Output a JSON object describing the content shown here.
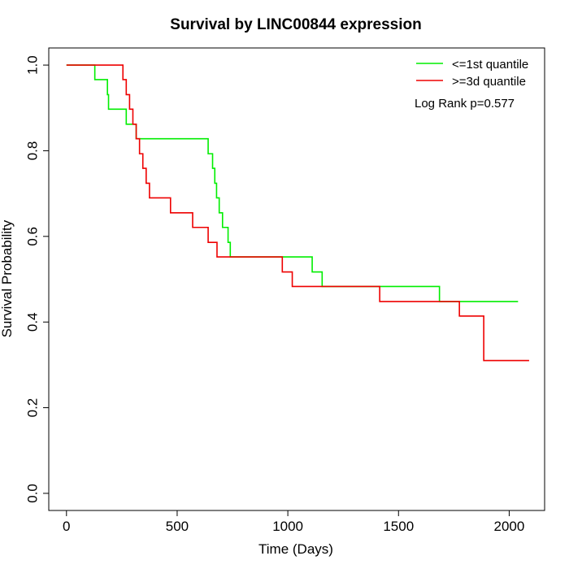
{
  "chart_data": {
    "type": "line",
    "title": "Survival by LINC00844 expression",
    "xlabel": "Time (Days)",
    "ylabel": "Survival Probability",
    "xlim": [
      -80,
      2160
    ],
    "ylim": [
      -0.04,
      1.04
    ],
    "xticks": [
      0,
      500,
      1000,
      1500,
      2000
    ],
    "xtick_labels": [
      "0",
      "500",
      "1000",
      "1500",
      "2000"
    ],
    "yticks": [
      0.0,
      0.2,
      0.4,
      0.6,
      0.8,
      1.0
    ],
    "ytick_labels": [
      "0.0",
      "0.2",
      "0.4",
      "0.6",
      "0.8",
      "1.0"
    ],
    "grid": false,
    "legend_position": "top-right",
    "annotation": "Log Rank p=0.577",
    "series": [
      {
        "name": "<=1st quantile",
        "color": "#00ee00",
        "step": true,
        "x": [
          0,
          128,
          185,
          190,
          270,
          315,
          640,
          660,
          670,
          678,
          690,
          705,
          730,
          740,
          1110,
          1155,
          1685,
          2040
        ],
        "y": [
          1.0,
          0.966,
          0.931,
          0.897,
          0.862,
          0.828,
          0.793,
          0.759,
          0.724,
          0.69,
          0.655,
          0.621,
          0.586,
          0.552,
          0.517,
          0.483,
          0.448,
          0.448
        ]
      },
      {
        "name": ">=3d quantile",
        "color": "#ee0000",
        "step": true,
        "x": [
          0,
          255,
          270,
          285,
          300,
          315,
          330,
          345,
          360,
          375,
          390,
          470,
          570,
          640,
          680,
          975,
          1020,
          1415,
          1775,
          1885,
          2090
        ],
        "y": [
          1.0,
          0.966,
          0.931,
          0.897,
          0.862,
          0.828,
          0.793,
          0.759,
          0.724,
          0.69,
          0.69,
          0.655,
          0.621,
          0.586,
          0.552,
          0.517,
          0.483,
          0.448,
          0.414,
          0.31,
          0.31
        ]
      }
    ]
  }
}
